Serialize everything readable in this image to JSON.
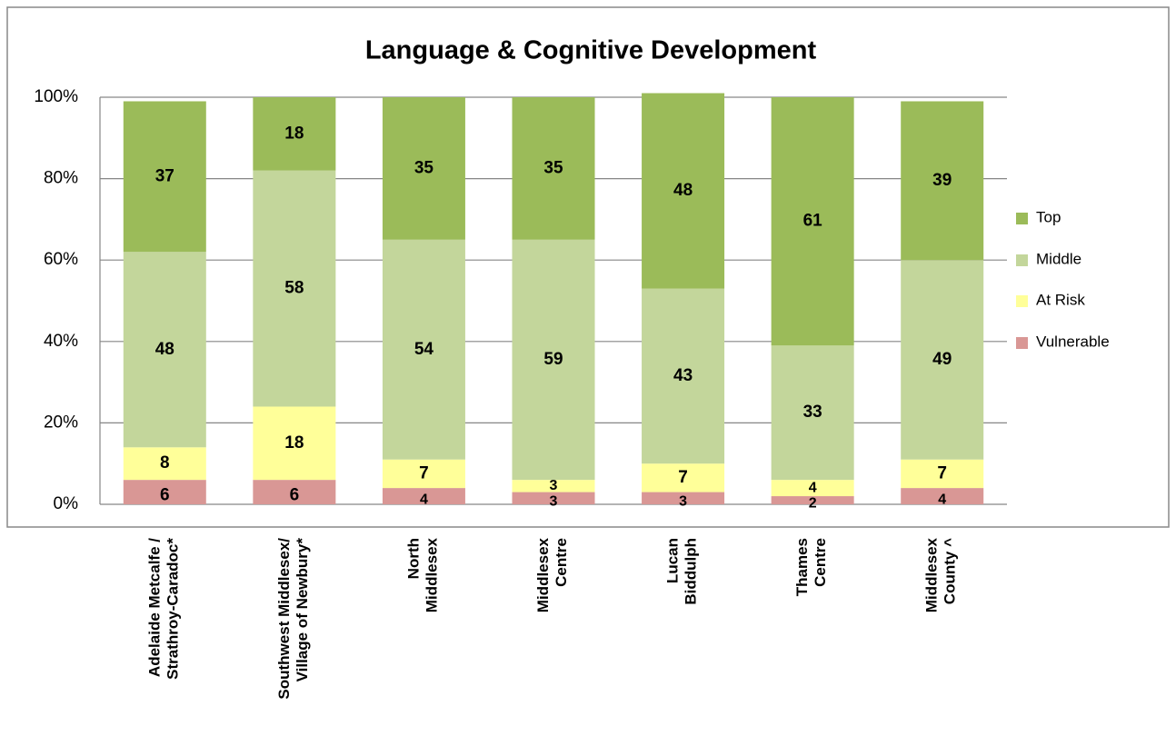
{
  "chart_data": {
    "type": "stacked-bar",
    "title": "Language & Cognitive Development",
    "categories": [
      "Adelaide Metcalfe /\nStrathroy-Caradoc*",
      "Southwest Middlesex/\nVillage of Newbury*",
      "North\nMiddlesex",
      "Middlesex\nCentre",
      "Lucan\nBiddulph",
      "Thames\nCentre",
      "Middlesex\nCounty ^"
    ],
    "series": [
      {
        "name": "Vulnerable",
        "color": "#d99795",
        "values": [
          6,
          6,
          4,
          3,
          3,
          2,
          4
        ]
      },
      {
        "name": "At Risk",
        "color": "#ffff99",
        "values": [
          8,
          18,
          7,
          3,
          7,
          4,
          7
        ]
      },
      {
        "name": "Middle",
        "color": "#c3d69b",
        "values": [
          48,
          58,
          54,
          59,
          43,
          33,
          49
        ]
      },
      {
        "name": "Top",
        "color": "#9bbb59",
        "values": [
          37,
          18,
          35,
          35,
          48,
          61,
          39
        ]
      }
    ],
    "ylim": [
      0,
      100
    ],
    "yticks": [
      {
        "value": 0,
        "label": "0%"
      },
      {
        "value": 20,
        "label": "20%"
      },
      {
        "value": 40,
        "label": "40%"
      },
      {
        "value": 60,
        "label": "60%"
      },
      {
        "value": 80,
        "label": "80%"
      },
      {
        "value": 100,
        "label": "100%"
      }
    ],
    "grid": true,
    "legend": "right"
  }
}
